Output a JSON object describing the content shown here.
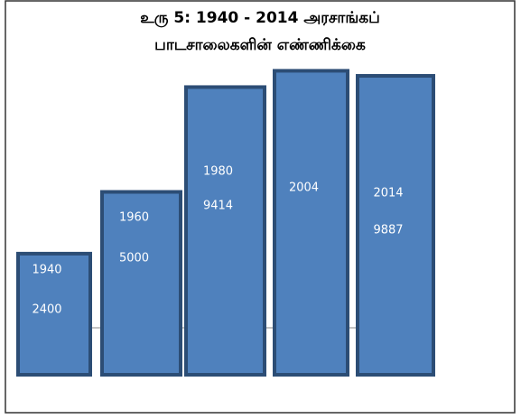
{
  "chart_data": {
    "type": "bar",
    "title": [
      "உரு 5: 1940 - 2014 அரசாங்கப்",
      "பாடசாலைகளின் எண்ணிக்கை"
    ],
    "categories": [
      "1940",
      "1960",
      "1980",
      "2004",
      "2014"
    ],
    "values": [
      2400,
      5000,
      9414,
      10100,
      9887
    ],
    "value_labels": [
      "2400",
      "5000",
      "9414",
      null,
      "9887"
    ],
    "color": "#4f81bd",
    "ylim": [
      -2700,
      10800
    ]
  }
}
